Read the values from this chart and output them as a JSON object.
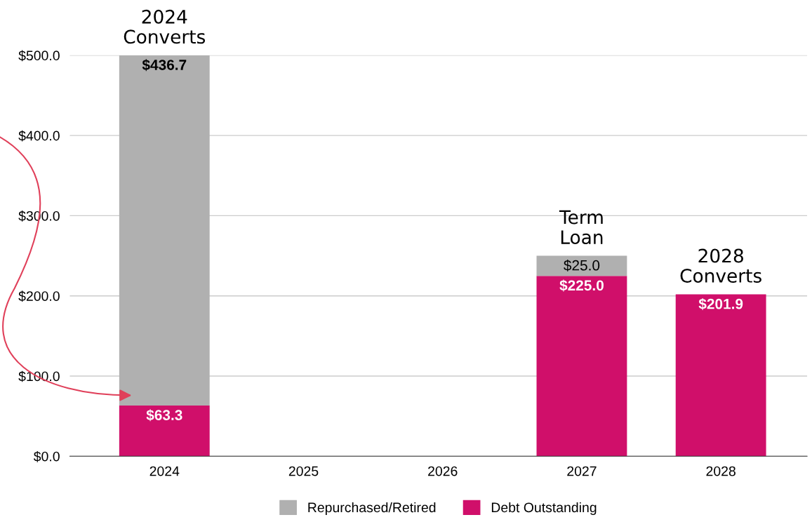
{
  "chart_data": {
    "type": "bar",
    "stacked": true,
    "categories": [
      "2024",
      "2025",
      "2026",
      "2027",
      "2028"
    ],
    "series": [
      {
        "name": "Debt Outstanding",
        "color": "#d00f6a",
        "values": [
          63.3,
          null,
          null,
          225.0,
          201.9
        ],
        "value_labels": [
          "$63.3",
          null,
          null,
          "$225.0",
          "$201.9"
        ]
      },
      {
        "name": "Repurchased/Retired",
        "color": "#b0b0b0",
        "values": [
          436.7,
          null,
          null,
          25.0,
          null
        ],
        "value_labels": [
          "$436.7",
          null,
          null,
          "$25.0",
          null
        ]
      }
    ],
    "ylim": [
      0,
      500
    ],
    "yticks": [
      {
        "value": 0,
        "label": "$0.0"
      },
      {
        "value": 100,
        "label": "$100.0"
      },
      {
        "value": 200,
        "label": "$200.0"
      },
      {
        "value": 300,
        "label": "$300.0"
      },
      {
        "value": 400,
        "label": "$400.0"
      },
      {
        "value": 500,
        "label": "$500.0"
      }
    ],
    "grid": "y",
    "legend": "bottom",
    "annotations": [
      {
        "text": "2024\nConverts",
        "x": "2024",
        "y": 500
      },
      {
        "text": "Term\nLoan",
        "x": "2027",
        "y": 250
      },
      {
        "text": "2028\nConverts",
        "x": "2028",
        "y": 201.9
      }
    ]
  }
}
